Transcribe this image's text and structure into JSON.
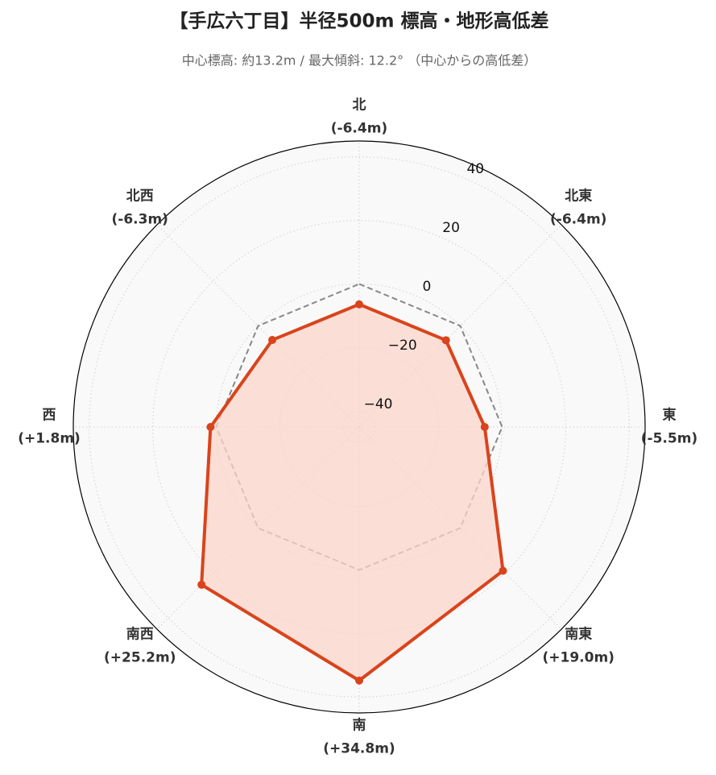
{
  "chart_data": {
    "type": "radar",
    "title": "【手広六丁目】半径500m 標高・地形高低差",
    "subtitle": "中心標高: 約13.2m / 最大傾斜: 12.2° （中心からの高低差）",
    "categories": [
      "北",
      "北東",
      "東",
      "南東",
      "南",
      "南西",
      "西",
      "北西"
    ],
    "series": [
      {
        "color": "#d9441c",
        "fill": "#fbd5cb",
        "values": [
          -6.4,
          -6.4,
          -5.5,
          19.0,
          34.8,
          25.2,
          1.8,
          -6.3
        ],
        "value_labels": [
          "(-6.4m)",
          "(-6.4m)",
          "(-5.5m)",
          "(+19.0m)",
          "(+34.8m)",
          "(+25.2m)",
          "(+1.8m)",
          "(-6.3m)"
        ]
      }
    ],
    "reference": {
      "value": 0,
      "color": "#888888"
    },
    "ylim": [
      -45,
      45
    ],
    "yticks": [
      {
        "value": -40,
        "label": "−40"
      },
      {
        "value": -20,
        "label": "−20"
      },
      0,
      20,
      40
    ],
    "grid": true
  }
}
